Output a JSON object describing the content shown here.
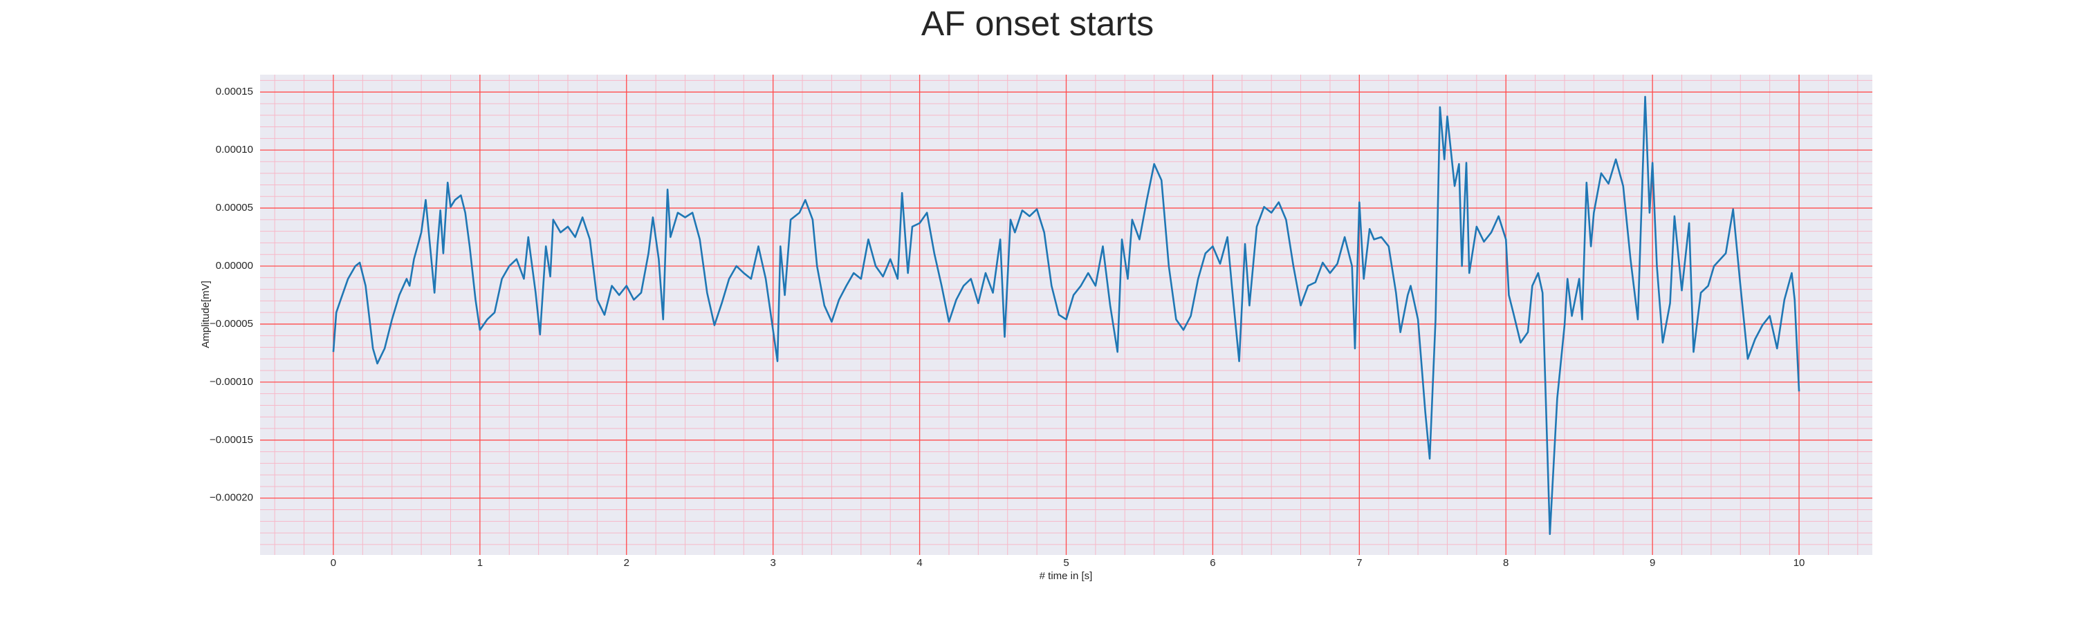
{
  "chart_data": {
    "type": "line",
    "title": "AF onset starts",
    "xlabel": "# time in [s]",
    "ylabel": "Amplitude[mV]",
    "xlim": [
      -0.5,
      10.5
    ],
    "ylim": [
      -0.000249,
      0.000165
    ],
    "xticks": [
      0,
      1,
      2,
      3,
      4,
      5,
      6,
      7,
      8,
      9,
      10
    ],
    "yticks": [
      {
        "value": -0.0002,
        "label": "−0.00020"
      },
      {
        "value": -0.00015,
        "label": "−0.00015"
      },
      {
        "value": -0.0001,
        "label": "−0.00010"
      },
      {
        "value": -5e-05,
        "label": "−0.00005"
      },
      {
        "value": 0,
        "label": "0.00000"
      },
      {
        "value": 5e-05,
        "label": "0.00005"
      },
      {
        "value": 0.0001,
        "label": "0.00010"
      },
      {
        "value": 0.00015,
        "label": "0.00015"
      }
    ],
    "grid": true,
    "minor_grid": true,
    "grid_color": "#ff4d4d",
    "minor_grid_color": "#f7b8c8",
    "background": "#eaeaf2",
    "series": [
      {
        "color": "#1f77b4",
        "x": [
          0,
          0.02,
          0.05,
          0.1,
          0.15,
          0.18,
          0.22,
          0.27,
          0.3,
          0.35,
          0.4,
          0.45,
          0.5,
          0.52,
          0.55,
          0.6,
          0.63,
          0.66,
          0.69,
          0.71,
          0.73,
          0.75,
          0.78,
          0.8,
          0.83,
          0.87,
          0.9,
          0.93,
          0.97,
          1.0,
          1.05,
          1.1,
          1.15,
          1.2,
          1.25,
          1.3,
          1.33,
          1.38,
          1.41,
          1.45,
          1.48,
          1.5,
          1.55,
          1.6,
          1.65,
          1.7,
          1.75,
          1.8,
          1.85,
          1.9,
          1.95,
          2.0,
          2.05,
          2.1,
          2.15,
          2.18,
          2.22,
          2.25,
          2.28,
          2.3,
          2.35,
          2.4,
          2.45,
          2.5,
          2.55,
          2.6,
          2.65,
          2.7,
          2.75,
          2.8,
          2.85,
          2.9,
          2.95,
          3.03,
          3.05,
          3.08,
          3.12,
          3.18,
          3.22,
          3.27,
          3.3,
          3.35,
          3.4,
          3.45,
          3.5,
          3.55,
          3.6,
          3.65,
          3.7,
          3.75,
          3.8,
          3.85,
          3.88,
          3.92,
          3.95,
          4.0,
          4.05,
          4.1,
          4.15,
          4.2,
          4.25,
          4.3,
          4.35,
          4.4,
          4.45,
          4.5,
          4.55,
          4.58,
          4.62,
          4.65,
          4.7,
          4.75,
          4.8,
          4.85,
          4.9,
          4.95,
          5.0,
          5.05,
          5.1,
          5.15,
          5.2,
          5.25,
          5.3,
          5.35,
          5.38,
          5.42,
          5.45,
          5.5,
          5.55,
          5.6,
          5.65,
          5.7,
          5.75,
          5.8,
          5.85,
          5.9,
          5.95,
          6.0,
          6.05,
          6.1,
          6.13,
          6.18,
          6.22,
          6.25,
          6.3,
          6.35,
          6.4,
          6.45,
          6.5,
          6.55,
          6.6,
          6.65,
          6.7,
          6.75,
          6.8,
          6.85,
          6.9,
          6.95,
          6.97,
          7.0,
          7.03,
          7.07,
          7.1,
          7.15,
          7.2,
          7.25,
          7.28,
          7.33,
          7.35,
          7.4,
          7.45,
          7.48,
          7.52,
          7.55,
          7.58,
          7.6,
          7.65,
          7.68,
          7.7,
          7.73,
          7.75,
          7.8,
          7.85,
          7.9,
          7.95,
          8.0,
          8.02,
          8.05,
          8.1,
          8.15,
          8.18,
          8.22,
          8.25,
          8.3,
          8.35,
          8.4,
          8.42,
          8.45,
          8.5,
          8.52,
          8.55,
          8.58,
          8.6,
          8.65,
          8.7,
          8.75,
          8.8,
          8.85,
          8.9,
          8.95,
          8.98,
          9.0,
          9.03,
          9.07,
          9.12,
          9.15,
          9.2,
          9.25,
          9.28,
          9.33,
          9.38,
          9.42,
          9.5,
          9.55,
          9.6,
          9.65,
          9.7,
          9.75,
          9.8,
          9.85,
          9.9,
          9.95,
          9.97,
          10.0
        ],
        "values": [
          -7.4e-05,
          -4e-05,
          -2.9e-05,
          -1.1e-05,
          0,
          3e-06,
          -1.7e-05,
          -7.1e-05,
          -8.4e-05,
          -7.1e-05,
          -4.6e-05,
          -2.5e-05,
          -1.1e-05,
          -1.7e-05,
          6e-06,
          2.9e-05,
          5.7e-05,
          1.7e-05,
          -2.3e-05,
          1.7e-05,
          4.8e-05,
          1.1e-05,
          7.2e-05,
          5.1e-05,
          5.7e-05,
          6.1e-05,
          4.6e-05,
          1.7e-05,
          -2.9e-05,
          -5.5e-05,
          -4.6e-05,
          -4e-05,
          -1.1e-05,
          0,
          6e-06,
          -1.1e-05,
          2.5e-05,
          -2.3e-05,
          -5.9e-05,
          1.7e-05,
          -9e-06,
          4e-05,
          2.9e-05,
          3.4e-05,
          2.5e-05,
          4.2e-05,
          2.3e-05,
          -2.9e-05,
          -4.2e-05,
          -1.7e-05,
          -2.5e-05,
          -1.7e-05,
          -2.9e-05,
          -2.3e-05,
          1.1e-05,
          4.2e-05,
          6e-06,
          -4.6e-05,
          6.6e-05,
          2.5e-05,
          4.6e-05,
          4.2e-05,
          4.6e-05,
          2.3e-05,
          -2.3e-05,
          -5.1e-05,
          -3.2e-05,
          -1.1e-05,
          0,
          -6e-06,
          -1.1e-05,
          1.7e-05,
          -1.1e-05,
          -8.2e-05,
          1.7e-05,
          -2.5e-05,
          4e-05,
          4.6e-05,
          5.7e-05,
          4e-05,
          0,
          -3.4e-05,
          -4.8e-05,
          -2.9e-05,
          -1.7e-05,
          -6e-06,
          -1.1e-05,
          2.3e-05,
          0,
          -9e-06,
          6e-06,
          -1.1e-05,
          6.3e-05,
          -6e-06,
          3.4e-05,
          3.7e-05,
          4.6e-05,
          1.1e-05,
          -1.7e-05,
          -4.8e-05,
          -2.9e-05,
          -1.7e-05,
          -1.1e-05,
          -3.2e-05,
          -6e-06,
          -2.3e-05,
          2.3e-05,
          -6.1e-05,
          4e-05,
          2.9e-05,
          4.8e-05,
          4.3e-05,
          4.9e-05,
          2.9e-05,
          -1.7e-05,
          -4.2e-05,
          -4.6e-05,
          -2.5e-05,
          -1.7e-05,
          -6e-06,
          -1.7e-05,
          1.7e-05,
          -3.4e-05,
          -7.4e-05,
          2.3e-05,
          -1.1e-05,
          4e-05,
          2.3e-05,
          5.7e-05,
          8.8e-05,
          7.4e-05,
          0,
          -4.6e-05,
          -5.5e-05,
          -4.3e-05,
          -1.1e-05,
          1.1e-05,
          1.7e-05,
          2e-06,
          2.5e-05,
          -1.7e-05,
          -8.2e-05,
          1.9e-05,
          -3.4e-05,
          3.4e-05,
          5.1e-05,
          4.6e-05,
          5.5e-05,
          4e-05,
          0,
          -3.4e-05,
          -1.7e-05,
          -1.4e-05,
          3e-06,
          -6e-06,
          2e-06,
          2.5e-05,
          0,
          -7.1e-05,
          5.5e-05,
          -1.1e-05,
          3.2e-05,
          2.3e-05,
          2.5e-05,
          1.7e-05,
          -2.3e-05,
          -5.7e-05,
          -2.5e-05,
          -1.7e-05,
          -4.6e-05,
          -0.000126,
          -0.000166,
          -4.6e-05,
          0.000137,
          9.2e-05,
          0.000129,
          6.9e-05,
          8.8e-05,
          0,
          8.9e-05,
          -6e-06,
          3.4e-05,
          2.1e-05,
          2.9e-05,
          4.3e-05,
          2.3e-05,
          -2.5e-05,
          -4e-05,
          -6.6e-05,
          -5.7e-05,
          -1.7e-05,
          -6e-06,
          -2.3e-05,
          -0.000231,
          -0.000114,
          -5.1e-05,
          -1.1e-05,
          -4.3e-05,
          -1.1e-05,
          -4.6e-05,
          7.2e-05,
          1.7e-05,
          4.6e-05,
          8e-05,
          7.1e-05,
          9.2e-05,
          6.9e-05,
          6e-06,
          -4.6e-05,
          0.000146,
          4.6e-05,
          8.9e-05,
          0,
          -6.6e-05,
          -3.2e-05,
          4.3e-05,
          -2.1e-05,
          3.7e-05,
          -7.4e-05,
          -2.3e-05,
          -1.7e-05,
          0,
          1.1e-05,
          4.9e-05,
          -1.7e-05,
          -8e-05,
          -6.3e-05,
          -5.1e-05,
          -4.3e-05,
          -7.1e-05,
          -2.9e-05,
          -6e-06,
          -2.9e-05,
          -0.000108
        ]
      }
    ]
  }
}
